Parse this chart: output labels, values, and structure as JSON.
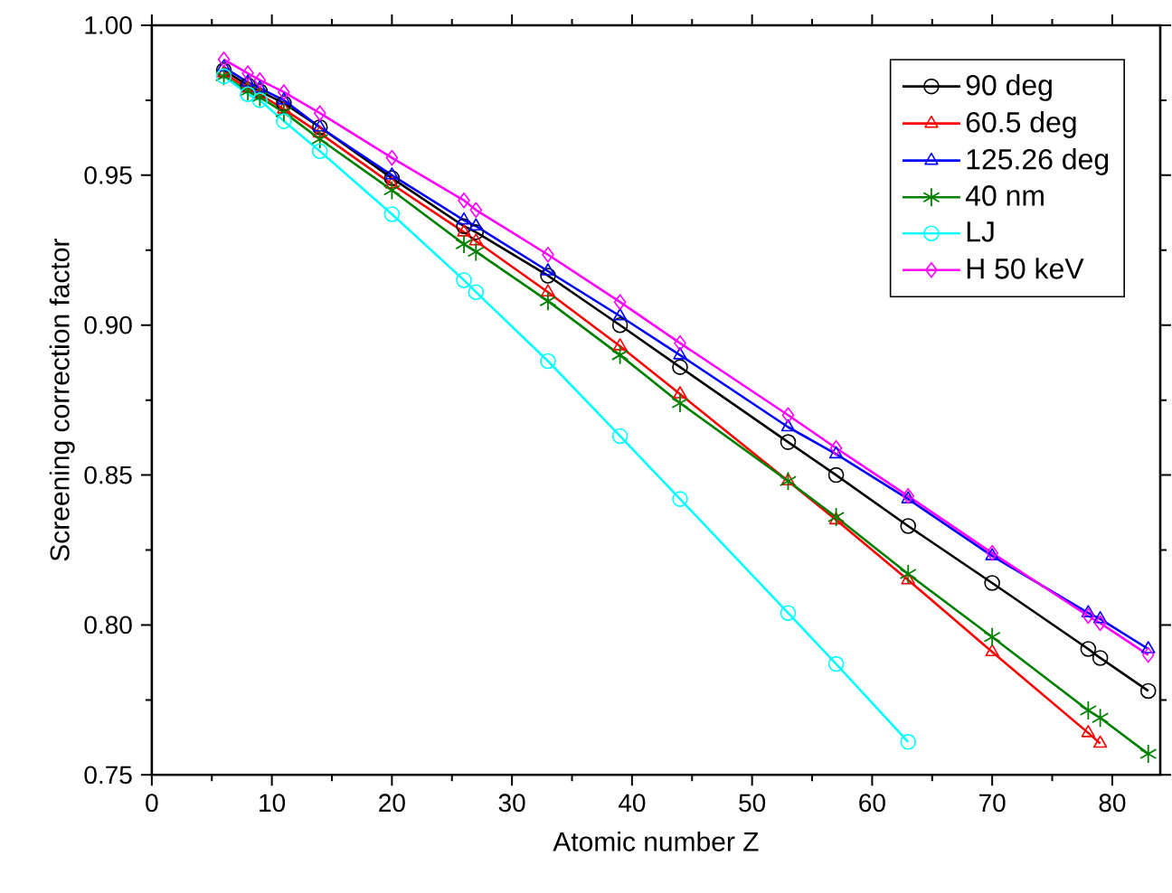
{
  "chart_data": {
    "type": "line",
    "xlabel": "Atomic number Z",
    "ylabel": "Screening correction factor",
    "x": [
      6,
      8,
      9,
      11,
      14,
      20,
      26,
      27,
      33,
      39,
      44,
      53,
      57,
      63,
      70,
      78,
      79,
      83
    ],
    "series": [
      {
        "name": "90 deg",
        "color": "#000000",
        "marker": "circle",
        "values": [
          0.985,
          0.98,
          0.978,
          0.974,
          0.966,
          0.949,
          0.933,
          0.931,
          0.9165,
          0.9,
          0.886,
          0.861,
          0.85,
          0.833,
          0.814,
          0.792,
          0.789,
          0.778
        ]
      },
      {
        "name": "60.5 deg",
        "color": "#ff0000",
        "marker": "triangle",
        "values": [
          0.984,
          0.979,
          0.977,
          0.972,
          0.964,
          0.947,
          0.931,
          0.928,
          0.911,
          0.893,
          0.877,
          0.848,
          0.835,
          0.815,
          0.791,
          0.764,
          0.7605,
          null
        ]
      },
      {
        "name": "125.26 deg",
        "color": "#0000ff",
        "marker": "triangle",
        "values": [
          0.986,
          0.981,
          0.979,
          0.975,
          0.966,
          0.95,
          0.935,
          0.933,
          0.918,
          0.903,
          0.89,
          0.866,
          0.857,
          0.842,
          0.823,
          0.804,
          0.802,
          0.792
        ]
      },
      {
        "name": "40 nm",
        "color": "#008000",
        "marker": "cross",
        "values": [
          0.983,
          0.978,
          0.976,
          0.971,
          0.962,
          0.945,
          0.927,
          0.9245,
          0.908,
          0.89,
          0.874,
          0.848,
          0.836,
          0.817,
          0.796,
          0.7715,
          0.769,
          0.757
        ]
      },
      {
        "name": "LJ",
        "color": "#00ffff",
        "marker": "circle",
        "values": [
          0.983,
          0.977,
          0.975,
          0.968,
          0.958,
          0.937,
          0.915,
          0.911,
          0.888,
          0.863,
          0.842,
          0.804,
          0.787,
          0.761,
          null,
          null,
          null,
          null
        ]
      },
      {
        "name": "H 50 keV",
        "color": "#ff00ff",
        "marker": "diamond",
        "values": [
          0.9886,
          0.984,
          0.9817,
          0.9777,
          0.9707,
          0.9558,
          0.9416,
          0.9384,
          0.9235,
          0.9077,
          0.894,
          0.87,
          0.859,
          0.843,
          0.824,
          0.803,
          0.8006,
          0.79
        ]
      }
    ],
    "xlim": [
      0,
      84
    ],
    "xticks": [
      0,
      10,
      20,
      30,
      40,
      50,
      60,
      70,
      80
    ],
    "ylim": [
      0.75,
      1.0
    ],
    "yticks": [
      {
        "value": 0.75,
        "label": "0.75"
      },
      {
        "value": 0.8,
        "label": "0.80"
      },
      {
        "value": 0.85,
        "label": "0.85"
      },
      {
        "value": 0.9,
        "label": "0.90"
      },
      {
        "value": 0.95,
        "label": "0.95"
      },
      {
        "value": 1.0,
        "label": "1.00"
      }
    ],
    "legend": "top right",
    "grid": false,
    "line_style": "solid"
  }
}
